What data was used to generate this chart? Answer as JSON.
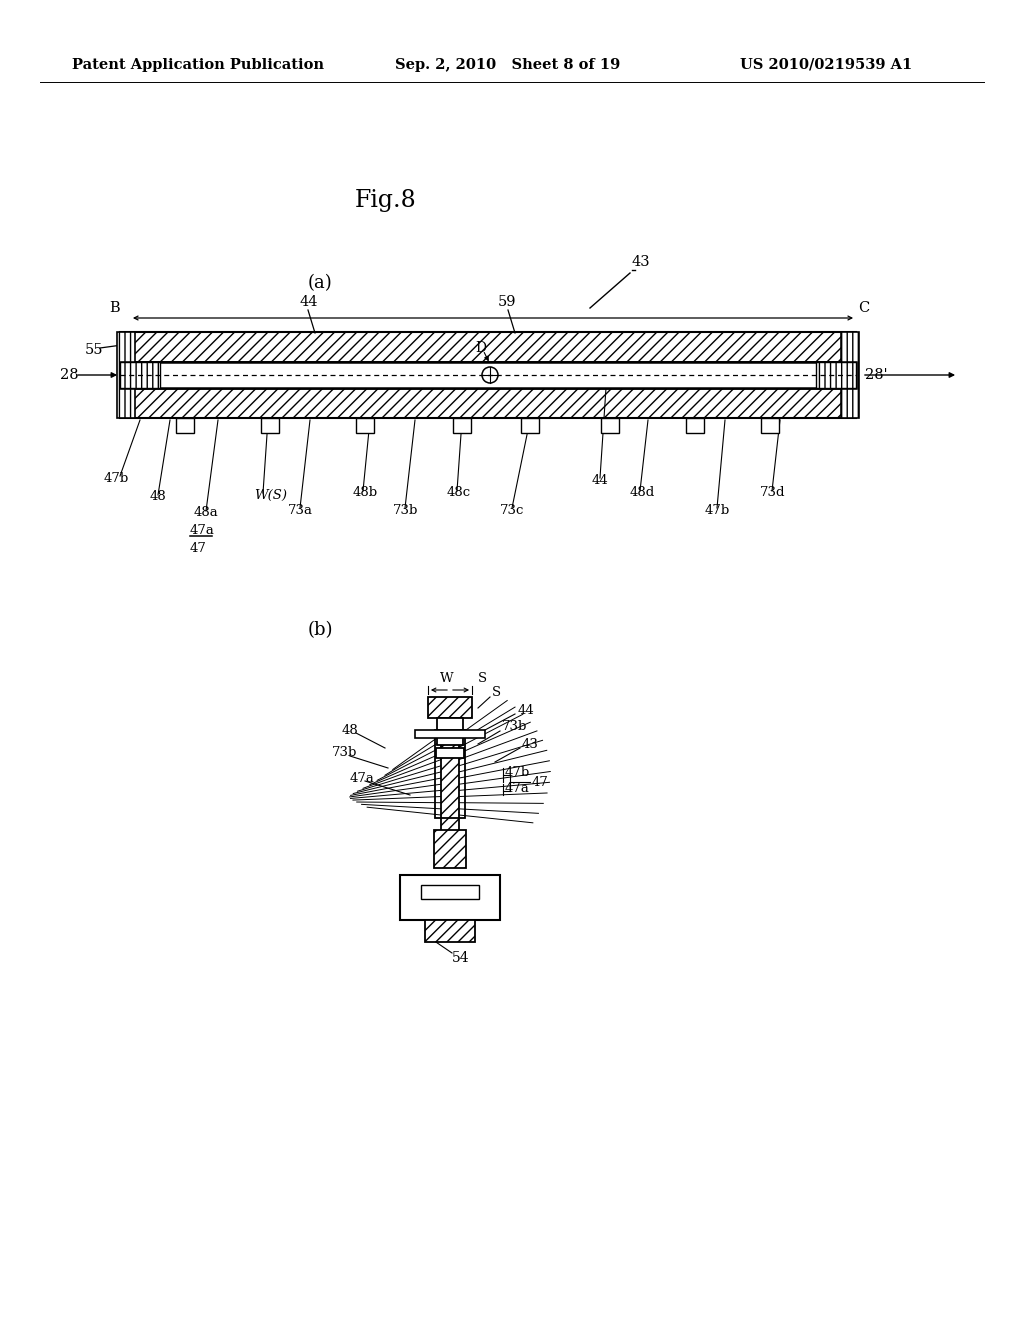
{
  "bg_color": "#ffffff",
  "header_left": "Patent Application Publication",
  "header_center": "Sep. 2, 2010   Sheet 8 of 19",
  "header_right": "US 2010/0219539 A1",
  "fig_label": "Fig.8"
}
